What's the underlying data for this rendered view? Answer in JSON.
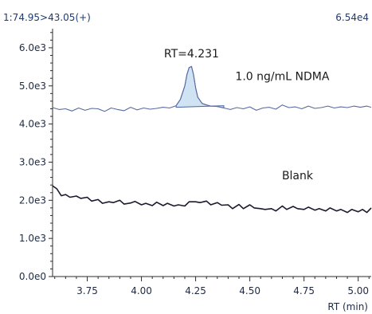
{
  "header": {
    "channel": "1:74.95>43.05(+)",
    "intensity": "6.54e4"
  },
  "chart_data": {
    "type": "line",
    "xlabel": "RT (min)",
    "ylabel": "",
    "xlim": [
      3.59,
      5.06
    ],
    "ylim": [
      0,
      6500
    ],
    "x_ticks": [
      3.75,
      4.0,
      4.25,
      4.5,
      4.75,
      5.0
    ],
    "x_tick_labels": [
      "3.75",
      "4.00",
      "4.25",
      "4.50",
      "4.75",
      "5.00"
    ],
    "y_ticks": [
      0,
      1000,
      2000,
      3000,
      4000,
      5000,
      6000
    ],
    "y_tick_labels": [
      "0.0e0",
      "1.0e3",
      "2.0e3",
      "3.0e3",
      "4.0e3",
      "5.0e3",
      "6.0e3"
    ],
    "series": [
      {
        "name": "1.0 ng/mL NDMA",
        "color": "#5a6aa0",
        "x": [
          3.59,
          3.62,
          3.65,
          3.68,
          3.71,
          3.74,
          3.77,
          3.8,
          3.83,
          3.86,
          3.89,
          3.92,
          3.95,
          3.98,
          4.01,
          4.04,
          4.07,
          4.1,
          4.13,
          4.16,
          4.18,
          4.2,
          4.21,
          4.22,
          4.231,
          4.24,
          4.25,
          4.26,
          4.28,
          4.3,
          4.32,
          4.35,
          4.38,
          4.41,
          4.44,
          4.47,
          4.5,
          4.53,
          4.56,
          4.59,
          4.62,
          4.65,
          4.68,
          4.71,
          4.74,
          4.77,
          4.8,
          4.83,
          4.86,
          4.89,
          4.92,
          4.95,
          4.98,
          5.01,
          5.04,
          5.06
        ],
        "y": [
          4430,
          4380,
          4400,
          4340,
          4420,
          4360,
          4410,
          4400,
          4330,
          4420,
          4380,
          4350,
          4440,
          4370,
          4420,
          4390,
          4410,
          4440,
          4420,
          4480,
          4650,
          5000,
          5300,
          5480,
          5510,
          5300,
          4950,
          4700,
          4540,
          4500,
          4470,
          4460,
          4420,
          4380,
          4430,
          4400,
          4450,
          4360,
          4420,
          4440,
          4390,
          4500,
          4430,
          4450,
          4400,
          4470,
          4410,
          4430,
          4470,
          4420,
          4450,
          4430,
          4470,
          4440,
          4470,
          4440
        ]
      },
      {
        "name": "Blank",
        "color": "#1a1a2e",
        "x": [
          3.59,
          3.61,
          3.63,
          3.65,
          3.67,
          3.7,
          3.72,
          3.75,
          3.77,
          3.8,
          3.82,
          3.85,
          3.87,
          3.9,
          3.92,
          3.95,
          3.97,
          4.0,
          4.02,
          4.05,
          4.07,
          4.1,
          4.12,
          4.15,
          4.17,
          4.2,
          4.22,
          4.25,
          4.27,
          4.3,
          4.32,
          4.35,
          4.37,
          4.4,
          4.42,
          4.45,
          4.47,
          4.5,
          4.52,
          4.55,
          4.57,
          4.6,
          4.62,
          4.65,
          4.67,
          4.7,
          4.72,
          4.75,
          4.77,
          4.8,
          4.82,
          4.85,
          4.87,
          4.9,
          4.92,
          4.95,
          4.97,
          5.0,
          5.02,
          5.04,
          5.06
        ],
        "y": [
          2380,
          2300,
          2120,
          2150,
          2080,
          2110,
          2050,
          2080,
          1980,
          2020,
          1920,
          1960,
          1940,
          2000,
          1900,
          1930,
          1970,
          1880,
          1920,
          1860,
          1950,
          1860,
          1920,
          1850,
          1880,
          1850,
          1960,
          1960,
          1940,
          1980,
          1880,
          1940,
          1870,
          1880,
          1780,
          1890,
          1780,
          1880,
          1800,
          1780,
          1760,
          1780,
          1720,
          1850,
          1760,
          1840,
          1780,
          1760,
          1820,
          1740,
          1780,
          1720,
          1800,
          1720,
          1760,
          1680,
          1760,
          1700,
          1760,
          1680,
          1800
        ]
      }
    ],
    "annotations": [
      {
        "id": "rt",
        "text": "RT=4.231",
        "x": 4.231,
        "y": 5750
      },
      {
        "id": "ndma",
        "text": "1.0 ng/mL NDMA",
        "x": 4.65,
        "y": 5150
      },
      {
        "id": "blank",
        "text": "Blank",
        "x": 4.72,
        "y": 2550
      }
    ],
    "peak_fill": {
      "x_start": 4.16,
      "x_end": 4.38,
      "baseline_y": [
        4440,
        4480
      ],
      "color": "#cfe3f2",
      "edge_color": "#4a64a8"
    },
    "grid": false,
    "legend": "none"
  }
}
